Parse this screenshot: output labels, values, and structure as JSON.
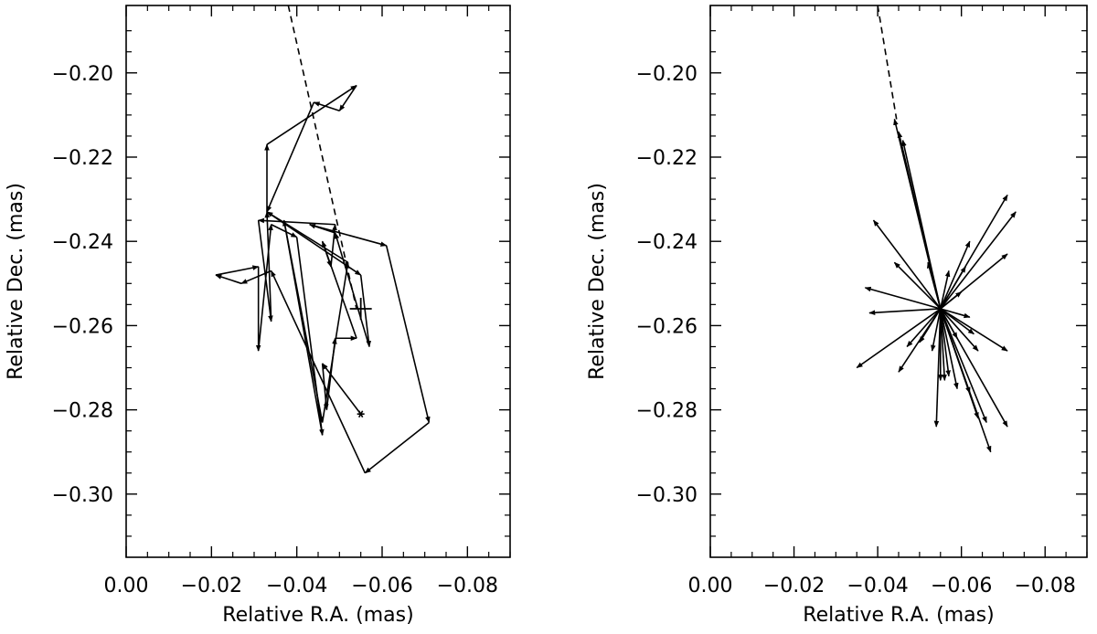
{
  "chart_data": [
    {
      "type": "line",
      "subtype": "astrometric-motion-arrows",
      "xlabel": "Relative R.A. (mas)",
      "ylabel": "Relative Dec. (mas)",
      "xlim": [
        0.0,
        -0.09
      ],
      "ylim": [
        -0.315,
        -0.184
      ],
      "x_ticks": [
        0.0,
        -0.02,
        -0.04,
        -0.06,
        -0.08
      ],
      "x_tick_labels": [
        "0.00",
        "−0.02",
        "−0.04",
        "−0.06",
        "−0.08"
      ],
      "y_ticks": [
        -0.2,
        -0.22,
        -0.24,
        -0.26,
        -0.28,
        -0.3
      ],
      "y_tick_labels": [
        "−0.20",
        "−0.22",
        "−0.24",
        "−0.26",
        "−0.28",
        "−0.30"
      ],
      "dashed_line": [
        [
          -0.038,
          -0.184
        ],
        [
          -0.054,
          -0.256
        ]
      ],
      "center_marker": {
        "symbol": "plus",
        "x": -0.055,
        "y": -0.256
      },
      "start_marker": {
        "symbol": "asterisk",
        "x": -0.055,
        "y": -0.281
      },
      "path": [
        [
          -0.055,
          -0.281
        ],
        [
          -0.046,
          -0.269
        ],
        [
          -0.047,
          -0.28
        ],
        [
          -0.049,
          -0.263
        ],
        [
          -0.054,
          -0.263
        ],
        [
          -0.046,
          -0.24
        ],
        [
          -0.048,
          -0.246
        ],
        [
          -0.049,
          -0.236
        ],
        [
          -0.031,
          -0.235
        ],
        [
          -0.034,
          -0.259
        ],
        [
          -0.033,
          -0.233
        ],
        [
          -0.055,
          -0.248
        ],
        [
          -0.057,
          -0.265
        ],
        [
          -0.049,
          -0.238
        ],
        [
          -0.043,
          -0.236
        ],
        [
          -0.061,
          -0.241
        ],
        [
          -0.071,
          -0.283
        ],
        [
          -0.056,
          -0.295
        ],
        [
          -0.034,
          -0.247
        ],
        [
          -0.027,
          -0.25
        ],
        [
          -0.021,
          -0.248
        ],
        [
          -0.031,
          -0.246
        ],
        [
          -0.031,
          -0.266
        ],
        [
          -0.034,
          -0.236
        ],
        [
          -0.04,
          -0.239
        ],
        [
          -0.046,
          -0.286
        ],
        [
          -0.037,
          -0.235
        ],
        [
          -0.046,
          -0.283
        ],
        [
          -0.052,
          -0.245
        ],
        [
          -0.033,
          -0.233
        ],
        [
          -0.033,
          -0.217
        ],
        [
          -0.054,
          -0.203
        ],
        [
          -0.05,
          -0.209
        ],
        [
          -0.044,
          -0.207
        ],
        [
          -0.033,
          -0.233
        ]
      ]
    },
    {
      "type": "line",
      "subtype": "astrometric-motion-arrows",
      "xlabel": "Relative R.A. (mas)",
      "ylabel": "Relative Dec. (mas)",
      "xlim": [
        0.0,
        -0.09
      ],
      "ylim": [
        -0.315,
        -0.184
      ],
      "x_ticks": [
        0.0,
        -0.02,
        -0.04,
        -0.06,
        -0.08
      ],
      "x_tick_labels": [
        "0.00",
        "−0.02",
        "−0.04",
        "−0.06",
        "−0.08"
      ],
      "y_ticks": [
        -0.2,
        -0.22,
        -0.24,
        -0.26,
        -0.28,
        -0.3
      ],
      "y_tick_labels": [
        "−0.20",
        "−0.22",
        "−0.24",
        "−0.26",
        "−0.28",
        "−0.30"
      ],
      "dashed_line": [
        [
          -0.04,
          -0.184
        ],
        [
          -0.0445,
          -0.211
        ]
      ],
      "origin": [
        -0.055,
        -0.256
      ],
      "arrow_tips": [
        [
          -0.044,
          -0.211
        ],
        [
          -0.045,
          -0.214
        ],
        [
          -0.046,
          -0.216
        ],
        [
          -0.071,
          -0.229
        ],
        [
          -0.073,
          -0.233
        ],
        [
          -0.071,
          -0.243
        ],
        [
          -0.062,
          -0.24
        ],
        [
          -0.061,
          -0.246
        ],
        [
          -0.06,
          -0.252
        ],
        [
          -0.057,
          -0.247
        ],
        [
          -0.039,
          -0.235
        ],
        [
          -0.044,
          -0.245
        ],
        [
          -0.052,
          -0.245
        ],
        [
          -0.037,
          -0.251
        ],
        [
          -0.038,
          -0.257
        ],
        [
          -0.035,
          -0.27
        ],
        [
          -0.045,
          -0.271
        ],
        [
          -0.047,
          -0.265
        ],
        [
          -0.05,
          -0.264
        ],
        [
          -0.053,
          -0.266
        ],
        [
          -0.054,
          -0.284
        ],
        [
          -0.055,
          -0.273
        ],
        [
          -0.056,
          -0.273
        ],
        [
          -0.057,
          -0.272
        ],
        [
          -0.059,
          -0.275
        ],
        [
          -0.062,
          -0.276
        ],
        [
          -0.064,
          -0.282
        ],
        [
          -0.066,
          -0.283
        ],
        [
          -0.067,
          -0.29
        ],
        [
          -0.071,
          -0.284
        ],
        [
          -0.071,
          -0.266
        ],
        [
          -0.064,
          -0.266
        ],
        [
          -0.062,
          -0.258
        ],
        [
          -0.063,
          -0.262
        ],
        [
          -0.059,
          -0.263
        ]
      ]
    }
  ]
}
